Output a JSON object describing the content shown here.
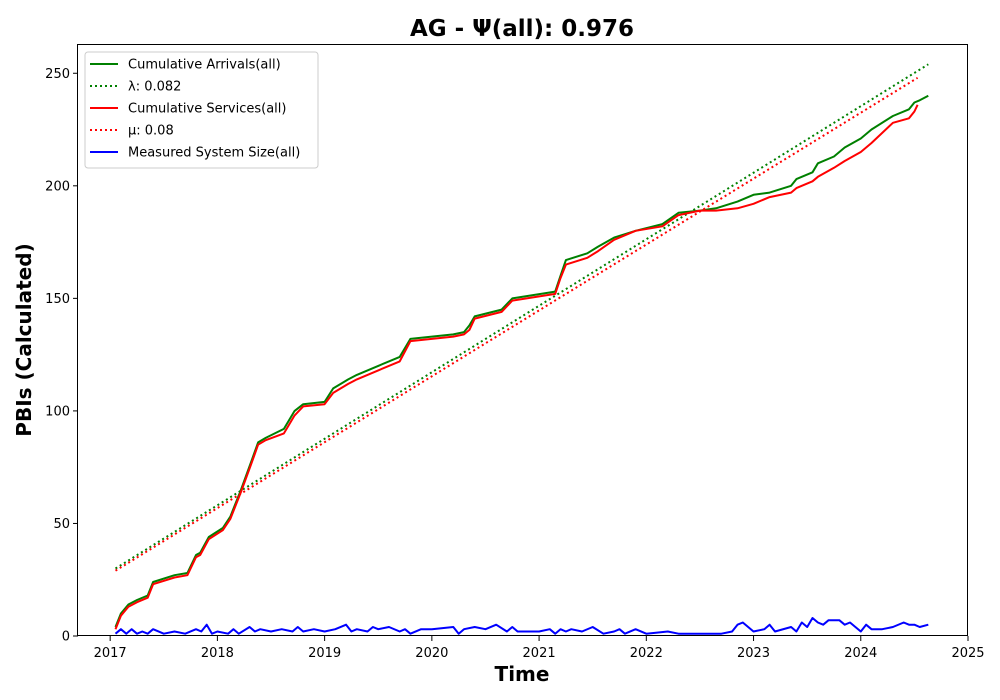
{
  "chart_data": {
    "type": "line",
    "title": "AG -  Ψ(all): 0.976",
    "xlabel": "Time",
    "ylabel": "PBIs (Calculated)",
    "xlim": [
      2016.7,
      2025.0
    ],
    "ylim": [
      0,
      263
    ],
    "x_ticks": [
      2017,
      2018,
      2019,
      2020,
      2021,
      2022,
      2023,
      2024,
      2025
    ],
    "y_ticks": [
      0,
      50,
      100,
      150,
      200,
      250
    ],
    "legend_position": "upper-left",
    "grid": false,
    "series": [
      {
        "name": "Cumulative Arrivals(all)",
        "color": "#008000",
        "style": "solid",
        "x": [
          2017.05,
          2017.1,
          2017.17,
          2017.25,
          2017.35,
          2017.4,
          2017.6,
          2017.72,
          2017.8,
          2017.84,
          2017.92,
          2018.05,
          2018.12,
          2018.22,
          2018.32,
          2018.38,
          2018.45,
          2018.62,
          2018.72,
          2018.8,
          2019.0,
          2019.08,
          2019.22,
          2019.3,
          2019.4,
          2019.5,
          2019.7,
          2019.8,
          2020.2,
          2020.3,
          2020.35,
          2020.4,
          2020.65,
          2020.75,
          2021.15,
          2021.2,
          2021.25,
          2021.45,
          2021.55,
          2021.7,
          2021.9,
          2022.15,
          2022.3,
          2022.5,
          2022.65,
          2022.85,
          2023.0,
          2023.15,
          2023.35,
          2023.4,
          2023.55,
          2023.6,
          2023.75,
          2023.85,
          2024.0,
          2024.1,
          2024.3,
          2024.45,
          2024.5,
          2024.55,
          2024.63
        ],
        "values": [
          4,
          10,
          14,
          16,
          18,
          24,
          27,
          28,
          36,
          37,
          44,
          48,
          53,
          65,
          78,
          86,
          88,
          92,
          100,
          103,
          104,
          110,
          114,
          116,
          118,
          120,
          124,
          132,
          134,
          135,
          138,
          142,
          145,
          150,
          153,
          160,
          167,
          170,
          173,
          177,
          180,
          183,
          188,
          189,
          190,
          193,
          196,
          197,
          200,
          203,
          206,
          210,
          213,
          217,
          221,
          225,
          231,
          234,
          237,
          238,
          240
        ]
      },
      {
        "name": "λ: 0.082",
        "color": "#008000",
        "style": "dotted",
        "x": [
          2017.05,
          2024.63
        ],
        "values": [
          30,
          254
        ]
      },
      {
        "name": "Cumulative Services(all)",
        "color": "#ff0000",
        "style": "solid",
        "x": [
          2017.05,
          2017.1,
          2017.17,
          2017.25,
          2017.35,
          2017.4,
          2017.6,
          2017.72,
          2017.8,
          2017.84,
          2017.92,
          2018.05,
          2018.12,
          2018.22,
          2018.32,
          2018.38,
          2018.45,
          2018.62,
          2018.72,
          2018.8,
          2019.0,
          2019.08,
          2019.22,
          2019.3,
          2019.4,
          2019.5,
          2019.7,
          2019.8,
          2020.2,
          2020.3,
          2020.35,
          2020.4,
          2020.65,
          2020.75,
          2021.15,
          2021.2,
          2021.25,
          2021.45,
          2021.55,
          2021.7,
          2021.9,
          2022.15,
          2022.3,
          2022.5,
          2022.65,
          2022.85,
          2023.0,
          2023.15,
          2023.35,
          2023.4,
          2023.55,
          2023.6,
          2023.75,
          2023.85,
          2024.0,
          2024.1,
          2024.3,
          2024.45,
          2024.5,
          2024.53
        ],
        "values": [
          3,
          9,
          13,
          15,
          17,
          23,
          26,
          27,
          35,
          36,
          43,
          47,
          52,
          64,
          77,
          85,
          87,
          90,
          98,
          102,
          103,
          108,
          112,
          114,
          116,
          118,
          122,
          131,
          133,
          134,
          136,
          141,
          144,
          149,
          152,
          159,
          165,
          168,
          171,
          176,
          180,
          182,
          187,
          189,
          189,
          190,
          192,
          195,
          197,
          199,
          202,
          204,
          208,
          211,
          215,
          219,
          228,
          230,
          233,
          236
        ]
      },
      {
        "name": "μ: 0.08",
        "color": "#ff0000",
        "style": "dotted",
        "x": [
          2017.05,
          2024.53
        ],
        "values": [
          29,
          248
        ]
      },
      {
        "name": "Measured System Size(all)",
        "color": "#0000ff",
        "style": "solid",
        "x": [
          2017.05,
          2017.1,
          2017.15,
          2017.2,
          2017.25,
          2017.3,
          2017.35,
          2017.4,
          2017.5,
          2017.6,
          2017.7,
          2017.8,
          2017.85,
          2017.9,
          2017.95,
          2018.0,
          2018.1,
          2018.15,
          2018.2,
          2018.3,
          2018.35,
          2018.4,
          2018.5,
          2018.6,
          2018.7,
          2018.75,
          2018.8,
          2018.9,
          2019.0,
          2019.1,
          2019.2,
          2019.25,
          2019.3,
          2019.4,
          2019.45,
          2019.5,
          2019.6,
          2019.7,
          2019.75,
          2019.8,
          2019.9,
          2020.0,
          2020.2,
          2020.25,
          2020.3,
          2020.4,
          2020.5,
          2020.6,
          2020.7,
          2020.75,
          2020.8,
          2021.0,
          2021.1,
          2021.15,
          2021.2,
          2021.25,
          2021.3,
          2021.4,
          2021.5,
          2021.6,
          2021.7,
          2021.75,
          2021.8,
          2021.9,
          2022.0,
          2022.2,
          2022.3,
          2022.5,
          2022.7,
          2022.8,
          2022.85,
          2022.9,
          2023.0,
          2023.1,
          2023.15,
          2023.2,
          2023.35,
          2023.4,
          2023.45,
          2023.5,
          2023.55,
          2023.6,
          2023.65,
          2023.7,
          2023.8,
          2023.85,
          2023.9,
          2024.0,
          2024.05,
          2024.1,
          2024.2,
          2024.3,
          2024.4,
          2024.45,
          2024.5,
          2024.55,
          2024.63
        ],
        "values": [
          1,
          3,
          1,
          3,
          1,
          2,
          1,
          3,
          1,
          2,
          1,
          3,
          2,
          5,
          1,
          2,
          1,
          3,
          1,
          4,
          2,
          3,
          2,
          3,
          2,
          4,
          2,
          3,
          2,
          3,
          5,
          2,
          3,
          2,
          4,
          3,
          4,
          2,
          3,
          1,
          3,
          3,
          4,
          1,
          3,
          4,
          3,
          5,
          2,
          4,
          2,
          2,
          3,
          1,
          3,
          2,
          3,
          2,
          4,
          1,
          2,
          3,
          1,
          3,
          1,
          2,
          1,
          1,
          1,
          2,
          5,
          6,
          2,
          3,
          5,
          2,
          4,
          2,
          6,
          4,
          8,
          6,
          5,
          7,
          7,
          5,
          6,
          2,
          5,
          3,
          3,
          4,
          6,
          5,
          5,
          4,
          5
        ]
      }
    ]
  }
}
